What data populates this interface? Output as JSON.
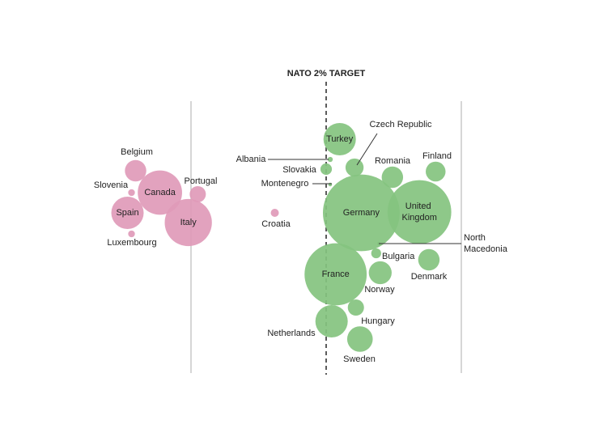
{
  "chart_data": {
    "type": "bubble",
    "target": 2,
    "target_label": "NATO 2% TARGET",
    "xlim": [
      1,
      3
    ],
    "series": [
      {
        "color": "#e09ab8",
        "points": [
          {
            "name": "Belgium",
            "x": 0.59,
            "size": 7
          },
          {
            "name": "Slovenia",
            "x": 0.56,
            "size": 0.7
          },
          {
            "name": "Canada",
            "x": 0.77,
            "size": 30
          },
          {
            "name": "Portugal",
            "x": 1.05,
            "size": 4
          },
          {
            "name": "Spain",
            "x": 0.53,
            "size": 16
          },
          {
            "name": "Luxembourg",
            "x": 0.56,
            "size": 0.7
          },
          {
            "name": "Italy",
            "x": 0.98,
            "size": 34
          },
          {
            "name": "Croatia",
            "x": 1.62,
            "size": 1
          }
        ]
      },
      {
        "color": "#84c37f",
        "points": [
          {
            "name": "Albania",
            "x": 2.03,
            "size": 0.4
          },
          {
            "name": "Slovakia",
            "x": 2.0,
            "size": 2
          },
          {
            "name": "Montenegro",
            "x": 2.03,
            "size": 0.2
          },
          {
            "name": "Turkey",
            "x": 2.1,
            "size": 16
          },
          {
            "name": "Czech Republic",
            "x": 2.21,
            "size": 5
          },
          {
            "name": "Romania",
            "x": 2.49,
            "size": 7
          },
          {
            "name": "Finland",
            "x": 2.81,
            "size": 6
          },
          {
            "name": "Germany",
            "x": 2.26,
            "size": 90
          },
          {
            "name": "United Kingdom",
            "x": 2.69,
            "size": 62
          },
          {
            "name": "North Macedonia",
            "x": 2.39,
            "size": 0.2
          },
          {
            "name": "Bulgaria",
            "x": 2.37,
            "size": 1.5
          },
          {
            "name": "France",
            "x": 2.07,
            "size": 59
          },
          {
            "name": "Norway",
            "x": 2.4,
            "size": 8
          },
          {
            "name": "Denmark",
            "x": 2.76,
            "size": 7
          },
          {
            "name": "Hungary",
            "x": 2.22,
            "size": 4
          },
          {
            "name": "Netherlands",
            "x": 2.04,
            "size": 16
          },
          {
            "name": "Sweden",
            "x": 2.25,
            "size": 10
          }
        ]
      }
    ]
  }
}
